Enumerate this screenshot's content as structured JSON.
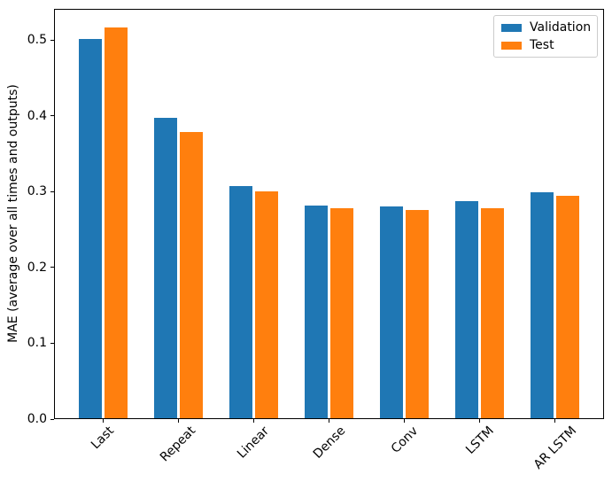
{
  "figure": {
    "background": "#ffffff",
    "frame_color": "#000000",
    "legend_border_color": "#cccccc"
  },
  "chart_data": {
    "type": "bar",
    "title": "",
    "xlabel": "",
    "ylabel": "MAE (average over all times and outputs)",
    "categories": [
      "Last",
      "Repeat",
      "Linear",
      "Dense",
      "Conv",
      "LSTM",
      "AR LSTM"
    ],
    "series": [
      {
        "name": "Validation",
        "color": "#1f77b4",
        "values": [
          0.501,
          0.397,
          0.306,
          0.281,
          0.28,
          0.286,
          0.298
        ]
      },
      {
        "name": "Test",
        "color": "#ff7f0e",
        "values": [
          0.516,
          0.378,
          0.3,
          0.277,
          0.275,
          0.277,
          0.293
        ]
      }
    ],
    "ylim": [
      0,
      0.5415
    ],
    "xlim": [
      -0.652,
      6.652
    ],
    "yticks": [
      0.0,
      0.1,
      0.2,
      0.3,
      0.4,
      0.5
    ],
    "ytick_labels": [
      "0.0",
      "0.1",
      "0.2",
      "0.3",
      "0.4",
      "0.5"
    ],
    "xtick_rotation": 45,
    "grid": false,
    "legend": {
      "position": "upper right",
      "entries": [
        "Validation",
        "Test"
      ]
    },
    "bar_width": 0.3,
    "bar_offsets": [
      -0.17,
      0.17
    ]
  }
}
